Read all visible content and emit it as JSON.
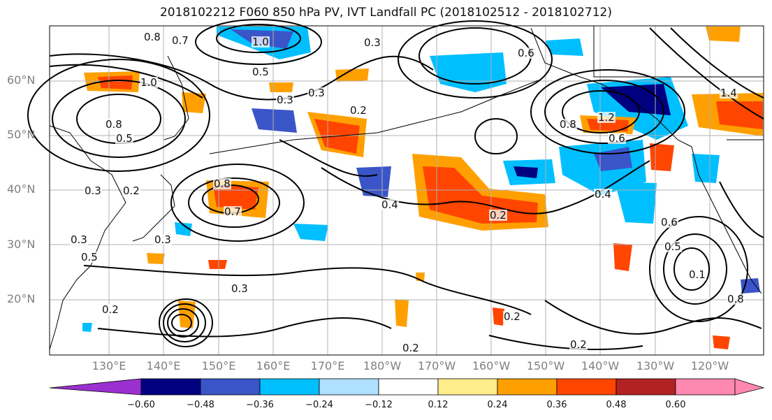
{
  "map": {
    "title": "2018102212 F060 850 hPa PV, IVT Landfall PC (2018102512 - 2018102712)",
    "lat_labels": [
      "60°N",
      "50°N",
      "40°N",
      "30°N",
      "20°N"
    ],
    "lon_labels": [
      "130°E",
      "140°E",
      "150°E",
      "160°E",
      "170°E",
      "180°W",
      "170°W",
      "160°W",
      "150°W",
      "140°W",
      "130°W",
      "120°W"
    ],
    "contour_labels": [
      "0.8",
      "0.7",
      "1.0",
      "0.3",
      "0.6",
      "0.5",
      "0.3",
      "0.8",
      "0.5",
      "1.0",
      "0.3",
      "0.2",
      "0.3",
      "0.8",
      "0.7",
      "0.3",
      "0.5",
      "0.4",
      "0.2",
      "0.3",
      "0.2",
      "0.3",
      "0.2",
      "0.2",
      "0.2",
      "0.4",
      "0.6",
      "0.5",
      "0.1",
      "0.8",
      "0.2",
      "1.2",
      "0.8",
      "1.4",
      "0.6"
    ],
    "colorbar": {
      "ticks": [
        "−0.60",
        "−0.48",
        "−0.36",
        "−0.24",
        "−0.12",
        "0.12",
        "0.24",
        "0.36",
        "0.48",
        "0.60"
      ],
      "colors": [
        "#9a30d0",
        "#000080",
        "#3a55c8",
        "#00bfff",
        "#b0e0ff",
        "#ffffff",
        "#ffec8a",
        "#ffa000",
        "#ff4500",
        "#b22222",
        "#ff88b0"
      ]
    }
  }
}
